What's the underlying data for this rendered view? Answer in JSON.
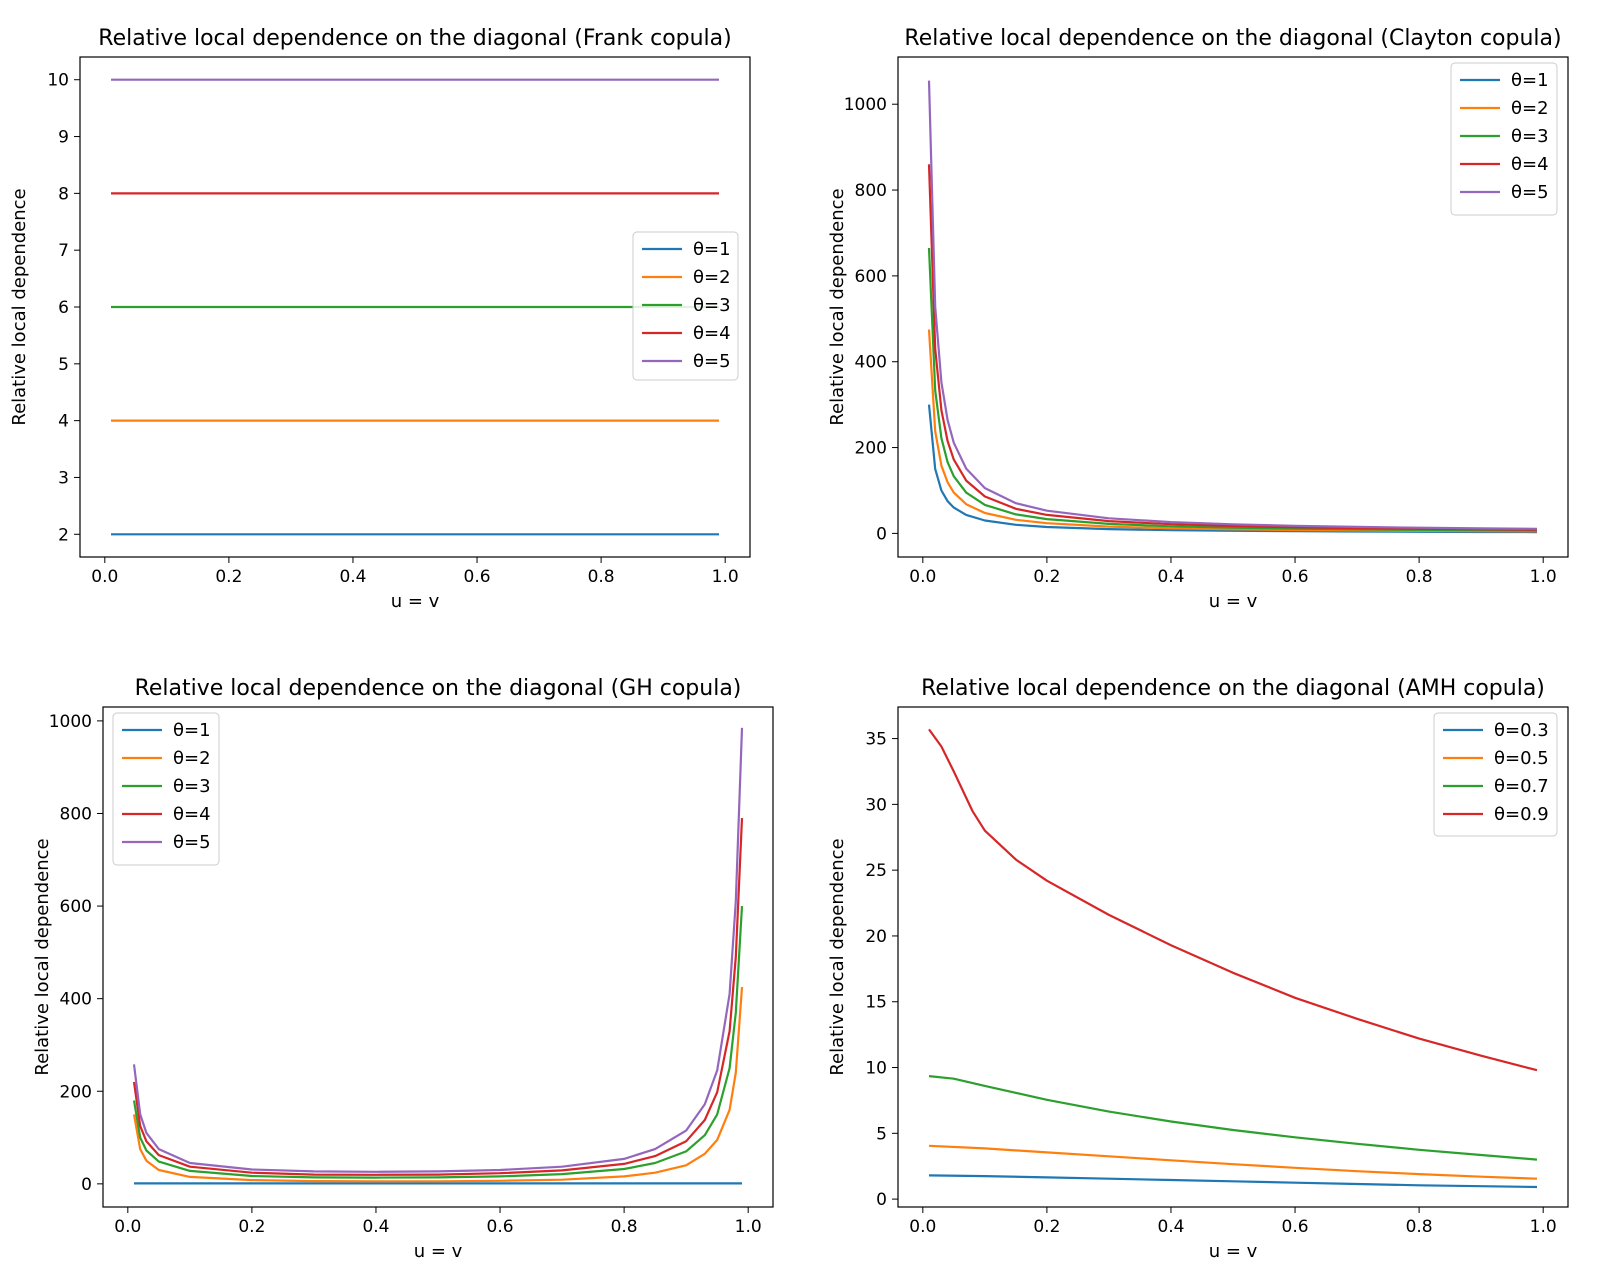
{
  "colors": {
    "blue": "#1f77b4",
    "orange": "#ff7f0e",
    "green": "#2ca02c",
    "red": "#d62728",
    "purple": "#9467bd"
  },
  "chart_data": [
    {
      "type": "line",
      "title": "Relative local dependence on the diagonal (Frank copula)",
      "xlabel": "u = v",
      "ylabel": "Relative local dependence",
      "xlim": [
        -0.04,
        1.04
      ],
      "ylim": [
        1.6,
        10.4
      ],
      "xticks": [
        0.0,
        0.2,
        0.4,
        0.6,
        0.8,
        1.0
      ],
      "xtick_labels": [
        "0.0",
        "0.2",
        "0.4",
        "0.6",
        "0.8",
        "1.0"
      ],
      "yticks": [
        2,
        3,
        4,
        5,
        6,
        7,
        8,
        9,
        10
      ],
      "ytick_labels": [
        "2",
        "3",
        "4",
        "5",
        "6",
        "7",
        "8",
        "9",
        "10"
      ],
      "grid": false,
      "legend_position": "center-right",
      "series": [
        {
          "name": "θ=1",
          "color": "#1f77b4",
          "x": [
            0.01,
            0.99
          ],
          "y": [
            2,
            2
          ]
        },
        {
          "name": "θ=2",
          "color": "#ff7f0e",
          "x": [
            0.01,
            0.99
          ],
          "y": [
            4,
            4
          ]
        },
        {
          "name": "θ=3",
          "color": "#2ca02c",
          "x": [
            0.01,
            0.99
          ],
          "y": [
            6,
            6
          ]
        },
        {
          "name": "θ=4",
          "color": "#d62728",
          "x": [
            0.01,
            0.99
          ],
          "y": [
            8,
            8
          ]
        },
        {
          "name": "θ=5",
          "color": "#9467bd",
          "x": [
            0.01,
            0.99
          ],
          "y": [
            10,
            10
          ]
        }
      ]
    },
    {
      "type": "line",
      "title": "Relative local dependence on the diagonal (Clayton copula)",
      "xlabel": "u = v",
      "ylabel": "Relative local dependence",
      "xlim": [
        -0.04,
        1.04
      ],
      "ylim": [
        -55,
        1110
      ],
      "xticks": [
        0.0,
        0.2,
        0.4,
        0.6,
        0.8,
        1.0
      ],
      "xtick_labels": [
        "0.0",
        "0.2",
        "0.4",
        "0.6",
        "0.8",
        "1.0"
      ],
      "yticks": [
        0,
        200,
        400,
        600,
        800,
        1000
      ],
      "ytick_labels": [
        "0",
        "200",
        "400",
        "600",
        "800",
        "1000"
      ],
      "grid": false,
      "legend_position": "upper-right",
      "series": [
        {
          "name": "θ=1",
          "color": "#1f77b4",
          "x": [
            0.01,
            0.02,
            0.03,
            0.04,
            0.05,
            0.07,
            0.1,
            0.15,
            0.2,
            0.3,
            0.4,
            0.5,
            0.6,
            0.7,
            0.8,
            0.9,
            0.99
          ],
          "y": [
            300,
            150,
            100,
            75,
            60,
            43,
            30,
            20,
            15,
            10,
            7.5,
            6,
            5,
            4.3,
            3.8,
            3.3,
            3
          ]
        },
        {
          "name": "θ=2",
          "color": "#ff7f0e",
          "x": [
            0.01,
            0.02,
            0.03,
            0.04,
            0.05,
            0.07,
            0.1,
            0.15,
            0.2,
            0.3,
            0.4,
            0.5,
            0.6,
            0.7,
            0.8,
            0.9,
            0.99
          ],
          "y": [
            475,
            238,
            158,
            119,
            95,
            68,
            47.5,
            31.7,
            23.8,
            15.8,
            11.9,
            9.5,
            7.9,
            6.8,
            5.9,
            5.3,
            4.8
          ]
        },
        {
          "name": "θ=3",
          "color": "#2ca02c",
          "x": [
            0.01,
            0.02,
            0.03,
            0.04,
            0.05,
            0.07,
            0.1,
            0.15,
            0.2,
            0.3,
            0.4,
            0.5,
            0.6,
            0.7,
            0.8,
            0.9,
            0.99
          ],
          "y": [
            665,
            333,
            222,
            166,
            133,
            95,
            66.5,
            44.3,
            33.3,
            22.2,
            16.6,
            13.3,
            11.1,
            9.5,
            8.3,
            7.4,
            6.7
          ]
        },
        {
          "name": "θ=4",
          "color": "#d62728",
          "x": [
            0.01,
            0.02,
            0.03,
            0.04,
            0.05,
            0.07,
            0.1,
            0.15,
            0.2,
            0.3,
            0.4,
            0.5,
            0.6,
            0.7,
            0.8,
            0.9,
            0.99
          ],
          "y": [
            860,
            430,
            287,
            215,
            172,
            123,
            86,
            57.3,
            43,
            28.7,
            21.5,
            17.2,
            14.3,
            12.3,
            10.8,
            9.6,
            8.7
          ]
        },
        {
          "name": "θ=5",
          "color": "#9467bd",
          "x": [
            0.01,
            0.02,
            0.03,
            0.04,
            0.05,
            0.07,
            0.1,
            0.15,
            0.2,
            0.3,
            0.4,
            0.5,
            0.6,
            0.7,
            0.8,
            0.9,
            0.99
          ],
          "y": [
            1055,
            528,
            352,
            264,
            211,
            151,
            105.5,
            70.3,
            52.8,
            35.2,
            26.4,
            21.1,
            17.6,
            15.1,
            13.2,
            11.7,
            10.7
          ]
        }
      ]
    },
    {
      "type": "line",
      "title": "Relative local dependence on the diagonal (GH copula)",
      "xlabel": "u = v",
      "ylabel": "Relative local dependence",
      "xlim": [
        -0.04,
        1.04
      ],
      "ylim": [
        -50,
        1030
      ],
      "xticks": [
        0.0,
        0.2,
        0.4,
        0.6,
        0.8,
        1.0
      ],
      "xtick_labels": [
        "0.0",
        "0.2",
        "0.4",
        "0.6",
        "0.8",
        "1.0"
      ],
      "yticks": [
        0,
        200,
        400,
        600,
        800,
        1000
      ],
      "ytick_labels": [
        "0",
        "200",
        "400",
        "600",
        "800",
        "1000"
      ],
      "grid": false,
      "legend_position": "upper-left",
      "series": [
        {
          "name": "θ=1",
          "color": "#1f77b4",
          "x": [
            0.01,
            0.5,
            0.99
          ],
          "y": [
            1,
            1,
            1
          ]
        },
        {
          "name": "θ=2",
          "color": "#ff7f0e",
          "x": [
            0.01,
            0.02,
            0.03,
            0.05,
            0.1,
            0.2,
            0.3,
            0.4,
            0.5,
            0.6,
            0.7,
            0.8,
            0.85,
            0.9,
            0.93,
            0.95,
            0.97,
            0.98,
            0.99
          ],
          "y": [
            150,
            75,
            50,
            30,
            15,
            8,
            6,
            5.5,
            5.5,
            6.5,
            9,
            16,
            24,
            40,
            65,
            95,
            160,
            240,
            425
          ]
        },
        {
          "name": "θ=3",
          "color": "#2ca02c",
          "x": [
            0.01,
            0.02,
            0.03,
            0.05,
            0.1,
            0.2,
            0.3,
            0.4,
            0.5,
            0.6,
            0.7,
            0.8,
            0.85,
            0.9,
            0.93,
            0.95,
            0.97,
            0.98,
            0.99
          ],
          "y": [
            180,
            100,
            72,
            48,
            28,
            17,
            14,
            13.5,
            14,
            16,
            21,
            32,
            45,
            70,
            105,
            150,
            250,
            370,
            600
          ]
        },
        {
          "name": "θ=4",
          "color": "#d62728",
          "x": [
            0.01,
            0.02,
            0.03,
            0.05,
            0.1,
            0.2,
            0.3,
            0.4,
            0.5,
            0.6,
            0.7,
            0.8,
            0.85,
            0.9,
            0.93,
            0.95,
            0.97,
            0.98,
            0.99
          ],
          "y": [
            220,
            125,
            92,
            62,
            37,
            24,
            20,
            19.5,
            20,
            23,
            29,
            43,
            60,
            92,
            138,
            198,
            330,
            490,
            790
          ]
        },
        {
          "name": "θ=5",
          "color": "#9467bd",
          "x": [
            0.01,
            0.02,
            0.03,
            0.05,
            0.1,
            0.2,
            0.3,
            0.4,
            0.5,
            0.6,
            0.7,
            0.8,
            0.85,
            0.9,
            0.93,
            0.95,
            0.97,
            0.98,
            0.99
          ],
          "y": [
            258,
            150,
            110,
            75,
            45,
            31,
            27,
            26,
            27,
            30,
            37,
            54,
            75,
            115,
            172,
            245,
            410,
            610,
            985
          ]
        }
      ]
    },
    {
      "type": "line",
      "title": "Relative local dependence on the diagonal (AMH copula)",
      "xlabel": "u = v",
      "ylabel": "Relative local dependence",
      "xlim": [
        -0.04,
        1.04
      ],
      "ylim": [
        -0.6,
        37.4
      ],
      "xticks": [
        0.0,
        0.2,
        0.4,
        0.6,
        0.8,
        1.0
      ],
      "xtick_labels": [
        "0.0",
        "0.2",
        "0.4",
        "0.6",
        "0.8",
        "1.0"
      ],
      "yticks": [
        0,
        5,
        10,
        15,
        20,
        25,
        30,
        35
      ],
      "ytick_labels": [
        "0",
        "5",
        "10",
        "15",
        "20",
        "25",
        "30",
        "35"
      ],
      "grid": false,
      "legend_position": "upper-right",
      "series": [
        {
          "name": "θ=0.3",
          "color": "#1f77b4",
          "x": [
            0.01,
            0.1,
            0.2,
            0.3,
            0.4,
            0.5,
            0.6,
            0.7,
            0.8,
            0.9,
            0.99
          ],
          "y": [
            1.8,
            1.75,
            1.65,
            1.55,
            1.45,
            1.35,
            1.25,
            1.15,
            1.05,
            0.98,
            0.92
          ]
        },
        {
          "name": "θ=0.5",
          "color": "#ff7f0e",
          "x": [
            0.01,
            0.1,
            0.2,
            0.3,
            0.4,
            0.5,
            0.6,
            0.7,
            0.8,
            0.9,
            0.99
          ],
          "y": [
            4.05,
            3.85,
            3.55,
            3.25,
            2.95,
            2.65,
            2.38,
            2.12,
            1.9,
            1.7,
            1.55
          ]
        },
        {
          "name": "θ=0.7",
          "color": "#2ca02c",
          "x": [
            0.01,
            0.05,
            0.1,
            0.2,
            0.3,
            0.4,
            0.5,
            0.6,
            0.7,
            0.8,
            0.9,
            0.99
          ],
          "y": [
            9.35,
            9.15,
            8.6,
            7.55,
            6.65,
            5.9,
            5.25,
            4.7,
            4.2,
            3.75,
            3.35,
            3.0
          ]
        },
        {
          "name": "θ=0.9",
          "color": "#d62728",
          "x": [
            0.01,
            0.03,
            0.05,
            0.08,
            0.1,
            0.15,
            0.2,
            0.3,
            0.4,
            0.5,
            0.6,
            0.7,
            0.8,
            0.9,
            0.99
          ],
          "y": [
            35.7,
            34.4,
            32.5,
            29.5,
            28.0,
            25.8,
            24.2,
            21.6,
            19.3,
            17.2,
            15.3,
            13.7,
            12.2,
            10.9,
            9.8
          ]
        }
      ]
    }
  ]
}
